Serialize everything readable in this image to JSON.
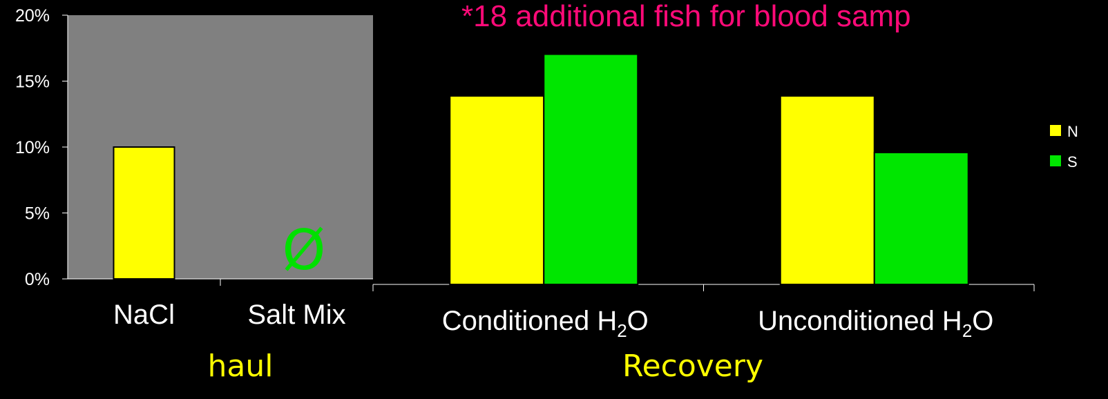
{
  "colors": {
    "background": "#000000",
    "panel": "#808080",
    "series_n": "#ffff00",
    "series_s": "#00e600",
    "note": "#ff0a78",
    "group_label": "#ffff00",
    "empty_marker": "#00e000"
  },
  "chart_data": [
    {
      "type": "bar",
      "categories": [
        "NaCl",
        "Salt Mix"
      ],
      "series": [
        {
          "name": "N",
          "values": [
            10,
            null
          ]
        },
        {
          "name": "S",
          "values": [
            null,
            null
          ]
        }
      ],
      "ylim": [
        0,
        20
      ],
      "yticks": [
        "0%",
        "5%",
        "10%",
        "15%",
        "20%"
      ],
      "empty_marker": "Ø",
      "group_label": "haul",
      "background": "gray panel"
    },
    {
      "type": "bar",
      "categories": [
        {
          "text": "Conditioned H",
          "sub": "2",
          "tail": "O"
        },
        {
          "text": "Unconditioned H",
          "sub": "2",
          "tail": "O"
        }
      ],
      "series": [
        {
          "name": "N",
          "values": [
            14,
            14
          ]
        },
        {
          "name": "S",
          "values": [
            17.1,
            9.8
          ]
        }
      ],
      "ylim": [
        0,
        20
      ],
      "group_label": "Recovery",
      "legend": "right"
    }
  ],
  "annotation": "*18 additional fish for blood samp"
}
